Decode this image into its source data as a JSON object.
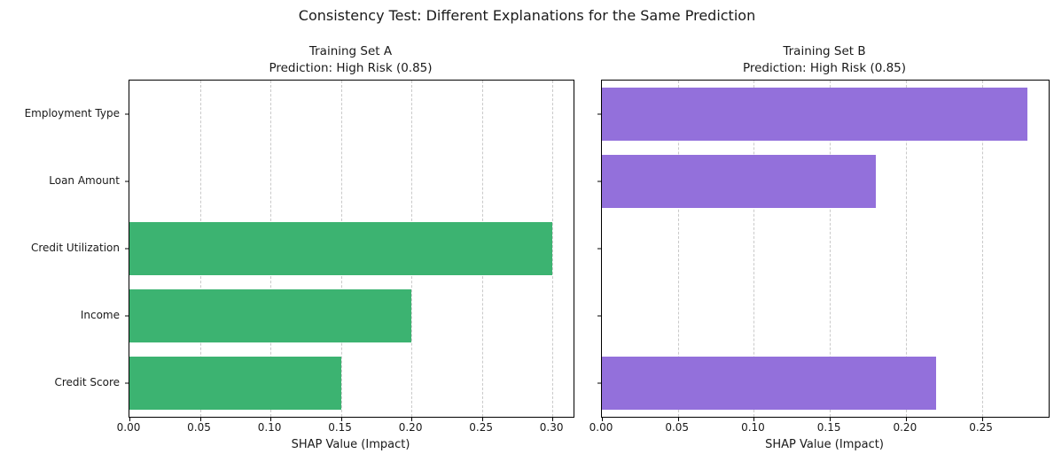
{
  "figure": {
    "title": "Consistency Test: Different Explanations for the Same Prediction",
    "background_color": "#ffffff",
    "text_color": "#1a1a1a",
    "spine_color": "#000000",
    "gridline_color": "#c9c9c9"
  },
  "chart_data": [
    {
      "type": "bar",
      "orientation": "horizontal",
      "title_line1": "Training Set A",
      "title_line2": "Prediction: High Risk (0.85)",
      "categories": [
        "Employment Type",
        "Loan Amount",
        "Credit Utilization",
        "Income",
        "Credit Score"
      ],
      "values": [
        0,
        0,
        0.3,
        0.2,
        0.15
      ],
      "bar_color": "#3cb371",
      "xlabel": "SHAP Value (Impact)",
      "xlim": [
        0,
        0.315
      ],
      "xticks": [
        0,
        0.05,
        0.1,
        0.15,
        0.2,
        0.25,
        0.3
      ],
      "xtick_labels": [
        "0.00",
        "0.05",
        "0.10",
        "0.15",
        "0.20",
        "0.25",
        "0.30"
      ],
      "grid": "vertical-dashed",
      "show_y_tick_labels": true
    },
    {
      "type": "bar",
      "orientation": "horizontal",
      "title_line1": "Training Set B",
      "title_line2": "Prediction: High Risk (0.85)",
      "categories": [
        "Employment Type",
        "Loan Amount",
        "Credit Utilization",
        "Income",
        "Credit Score"
      ],
      "values": [
        0.28,
        0.18,
        0,
        0,
        0.22
      ],
      "bar_color": "#9370db",
      "xlabel": "SHAP Value (Impact)",
      "xlim": [
        0,
        0.294
      ],
      "xticks": [
        0,
        0.05,
        0.1,
        0.15,
        0.2,
        0.25
      ],
      "xtick_labels": [
        "0.00",
        "0.05",
        "0.10",
        "0.15",
        "0.20",
        "0.25"
      ],
      "grid": "vertical-dashed",
      "show_y_tick_labels": false
    }
  ]
}
